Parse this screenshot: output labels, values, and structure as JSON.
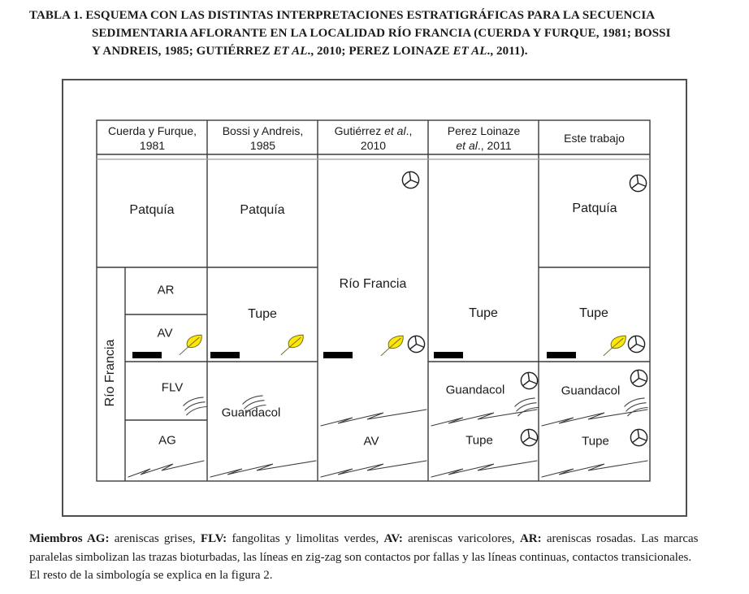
{
  "colors": {
    "leaf-fill": "#FFE60A",
    "leaf-stroke": "#6a6a1e",
    "grid-line": "#3c3c3c",
    "header-underline": "#9e9e9e",
    "frame": "#4f4f4f",
    "bar-fill": "#000000",
    "text": "#1a1a1a"
  },
  "title": {
    "line1": "TABLA 1. ESQUEMA CON LAS DISTINTAS INTERPRETACIONES ESTRATIGRÁFICAS PARA LA SECUENCIA",
    "line2": "SEDIMENTARIA AFLORANTE EN LA LOCALIDAD RÍO FRANCIA (CUERDA Y FURQUE, 1981; BOSSI",
    "line3_segments": [
      {
        "t": "Y ANDREIS, 1985; GUTIÉRREZ "
      },
      {
        "t": "ET AL",
        "i": true
      },
      {
        "t": "., 2010; PEREZ LOINAZE "
      },
      {
        "t": "ET AL",
        "i": true
      },
      {
        "t": "., 2011)."
      }
    ]
  },
  "table": {
    "headers": [
      {
        "line1": [
          {
            "t": "Cuerda y Furque,"
          }
        ],
        "line2": [
          {
            "t": "1981"
          }
        ]
      },
      {
        "line1": [
          {
            "t": "Bossi y Andreis,"
          }
        ],
        "line2": [
          {
            "t": "1985"
          }
        ]
      },
      {
        "line1": [
          {
            "t": "Gutiérrez "
          },
          {
            "t": "et al",
            "i": true
          },
          {
            "t": ".,"
          }
        ],
        "line2": [
          {
            "t": "2010"
          }
        ]
      },
      {
        "line1": [
          {
            "t": "Perez Loinaze"
          }
        ],
        "line2": [
          {
            "t": "et al",
            "i": true
          },
          {
            "t": "., 2011"
          }
        ]
      },
      {
        "line1": [
          {
            "t": "Este trabajo"
          }
        ],
        "line2": []
      }
    ],
    "col1": {
      "patquia": "Patquía",
      "group": "Río Francia",
      "ar": "AR",
      "av": "AV",
      "flv": "FLV",
      "ag": "AG"
    },
    "col2": {
      "patquia": "Patquía",
      "tupe": "Tupe",
      "guandacol": "Guandacol"
    },
    "col3": {
      "rio_francia": "Río Francia",
      "av": "AV"
    },
    "col4": {
      "tupe": "Tupe",
      "guandacol": "Guandacol",
      "tupe_lower": "Tupe"
    },
    "col5": {
      "patquia": "Patquía",
      "tupe": "Tupe",
      "guandacol": "Guandacol",
      "tupe_lower": "Tupe"
    }
  },
  "caption": {
    "line1_segments": [
      {
        "t": "Miembros AG:",
        "b": true
      },
      {
        "t": " areniscas grises, "
      },
      {
        "t": "FLV:",
        "b": true
      },
      {
        "t": " fangolitas y limolitas verdes, "
      },
      {
        "t": "AV:",
        "b": true
      },
      {
        "t": " areniscas varicolores, "
      },
      {
        "t": "AR:",
        "b": true
      },
      {
        "t": " areniscas rosadas. Las marcas"
      }
    ],
    "line2_segments": [
      {
        "t": "paralelas simbolizan las trazas bioturbadas, las líneas en zig-zag son contactos por fallas y las líneas continuas, contactos transicionales."
      }
    ],
    "line3_segments": [
      {
        "t": "El resto de la simbología se explica en la figura 2."
      }
    ]
  }
}
